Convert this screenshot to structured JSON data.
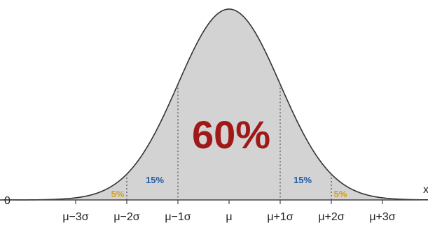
{
  "chart_data": {
    "type": "area",
    "curve": "normal-distribution",
    "x_ticks": [
      "μ−3σ",
      "μ−2σ",
      "μ−1σ",
      "μ",
      "μ+1σ",
      "μ+2σ",
      "μ+3σ"
    ],
    "x_tick_values": [
      -3,
      -2,
      -1,
      0,
      1,
      2,
      3
    ],
    "xlim": [
      -4.5,
      4.5
    ],
    "y_axis_label_partial": "0",
    "x_axis_label_partial": "x",
    "regions": [
      {
        "label": "5%",
        "from": -3,
        "to": -2,
        "color": "#d4a017"
      },
      {
        "label": "15%",
        "from": -2,
        "to": -1,
        "color": "#1f5aa6"
      },
      {
        "label": "60%",
        "from": -1,
        "to": 1,
        "color": "#a01818"
      },
      {
        "label": "15%",
        "from": 1,
        "to": 2,
        "color": "#1f5aa6"
      },
      {
        "label": "5%",
        "from": 2,
        "to": 3,
        "color": "#d4a017"
      }
    ],
    "boundaries": [
      -2,
      -1,
      1,
      2
    ],
    "fill_color": "#d3d3d3",
    "curve_color": "#333333",
    "grid": false,
    "legend": "none"
  }
}
